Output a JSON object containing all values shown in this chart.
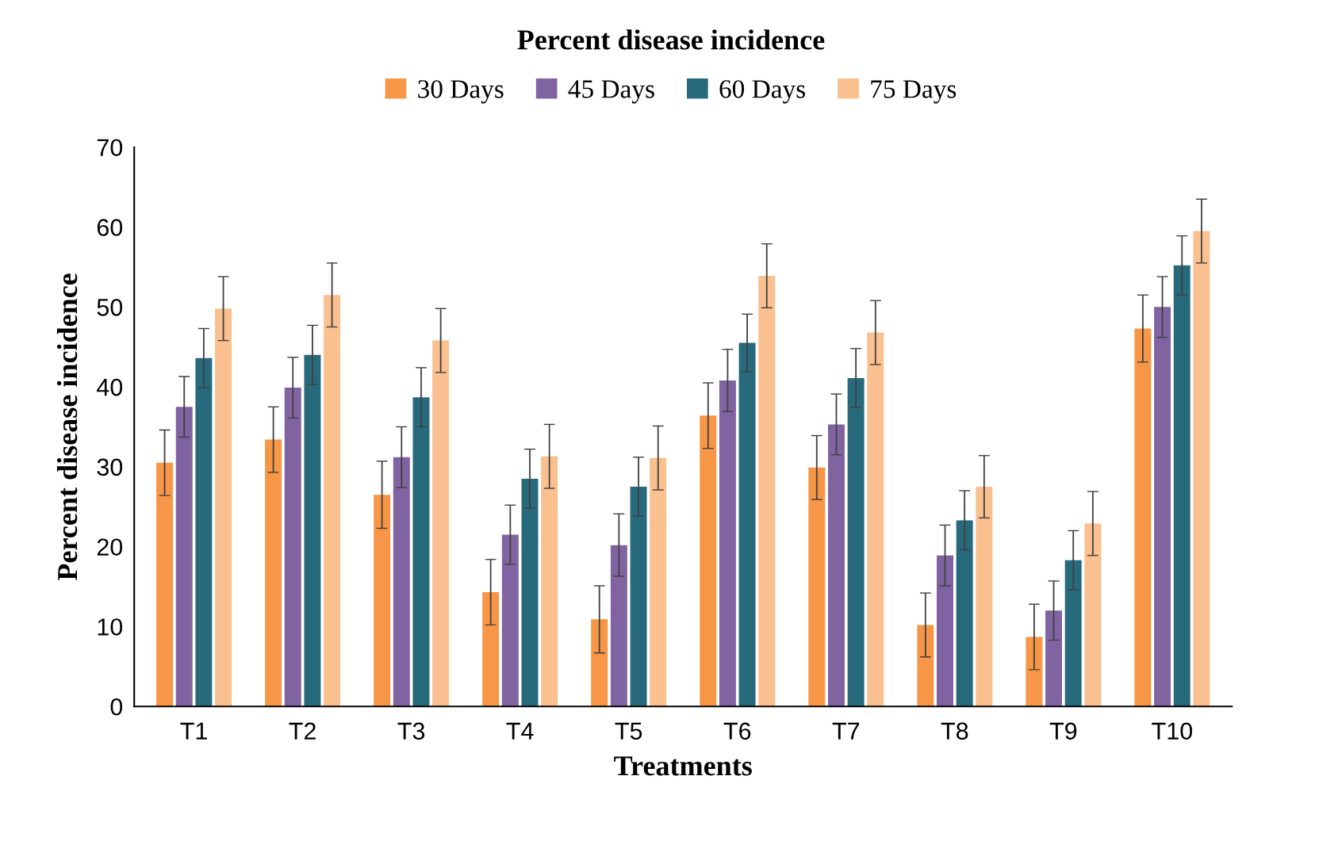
{
  "chart_data": {
    "type": "bar",
    "title": "Percent disease incidence",
    "xlabel": "Treatments",
    "ylabel": "Percent disease incidence",
    "categories": [
      "T1",
      "T2",
      "T3",
      "T4",
      "T5",
      "T6",
      "T7",
      "T8",
      "T9",
      "T10"
    ],
    "series": [
      {
        "name": "30 Days",
        "color": "#f79646",
        "values": [
          30.5,
          33.4,
          26.5,
          14.3,
          10.9,
          36.4,
          29.9,
          10.2,
          8.7,
          47.3
        ],
        "errors": [
          4.1,
          4.1,
          4.2,
          4.1,
          4.2,
          4.1,
          4.0,
          4.0,
          4.1,
          4.2
        ]
      },
      {
        "name": "45 Days",
        "color": "#8064a2",
        "values": [
          37.5,
          39.9,
          31.2,
          21.5,
          20.2,
          40.8,
          35.3,
          18.9,
          12.0,
          50.0
        ],
        "errors": [
          3.8,
          3.8,
          3.8,
          3.7,
          3.9,
          3.9,
          3.8,
          3.8,
          3.7,
          3.8
        ]
      },
      {
        "name": "60 Days",
        "color": "#276a7c",
        "values": [
          43.6,
          44.0,
          38.7,
          28.5,
          27.5,
          45.5,
          41.1,
          23.3,
          18.3,
          55.2
        ],
        "errors": [
          3.7,
          3.7,
          3.7,
          3.7,
          3.7,
          3.6,
          3.7,
          3.7,
          3.7,
          3.7
        ]
      },
      {
        "name": "75 Days",
        "color": "#fac08f",
        "values": [
          49.8,
          51.5,
          45.8,
          31.3,
          31.1,
          53.9,
          46.8,
          27.5,
          22.9,
          59.5
        ],
        "errors": [
          4.0,
          4.0,
          4.0,
          4.0,
          4.0,
          4.0,
          4.0,
          3.9,
          4.0,
          4.0
        ]
      }
    ],
    "ylim": [
      0,
      70
    ],
    "yticks": [
      0,
      10,
      20,
      30,
      40,
      50,
      60,
      70
    ],
    "grid": false,
    "legend": "top"
  }
}
